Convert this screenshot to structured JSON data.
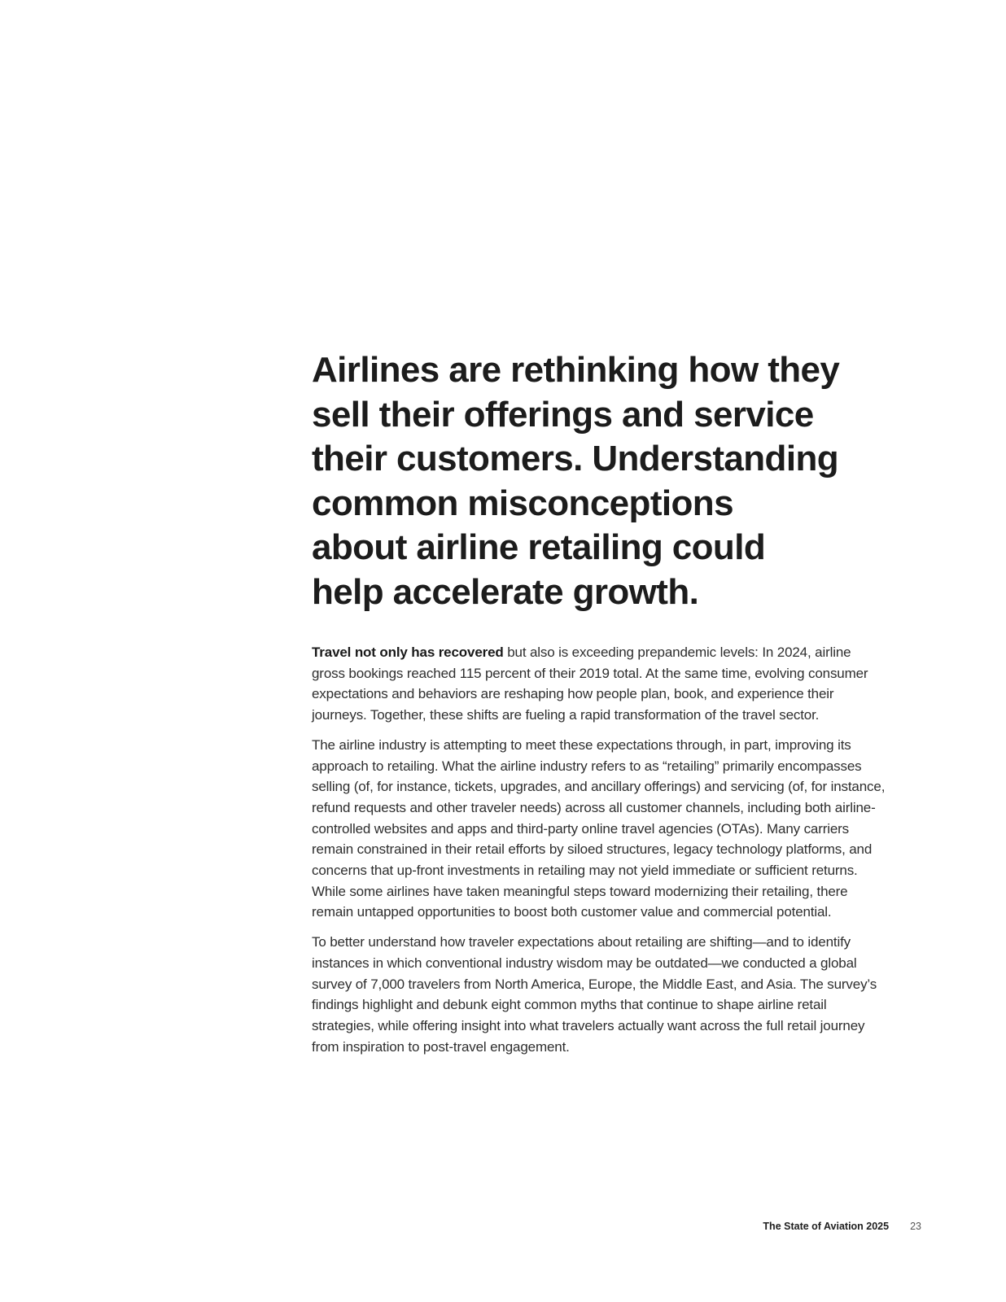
{
  "headline": "Airlines are rethinking how they\nsell their offerings and service\ntheir customers. Understanding\ncommon misconceptions\nabout airline retailing could\nhelp accelerate growth.",
  "paragraphs": {
    "p1": {
      "lead": "Travel not only has recovered",
      "text": " but also is exceeding prepandemic levels: In 2024, airline\ngross bookings reached 115 percent of their 2019 total. At the same time, evolving consumer\nexpectations and behaviors are reshaping how people plan, book, and experience their\njourneys. Together, these shifts are fueling a rapid transformation of the travel sector."
    },
    "p2": "The airline industry is attempting to meet these expectations through, in part, improving its\napproach to retailing.  What the airline industry refers to as “retailing” primarily encompasses\nselling (of, for instance, tickets, upgrades, and ancillary offerings) and servicing (of, for instance,\nrefund requests and other traveler needs) across all customer channels, including both airline-\ncontrolled websites and apps and third-party online travel agencies (OTAs). Many carriers\nremain constrained in their retail efforts by siloed structures, legacy technology platforms, and\nconcerns that up-front investments in retailing may not yield immediate or sufficient returns.\nWhile some airlines have taken meaningful steps toward modernizing their retailing, there\nremain untapped opportunities to boost both customer value and commercial potential.",
    "p3": "To better understand how traveler expectations about retailing are shifting—and to identify\ninstances in which conventional industry wisdom may be outdated—we conducted a global\nsurvey of 7,000 travelers from North America, Europe, the Middle East, and Asia. The survey’s\nfindings highlight and debunk eight common myths that continue to shape airline retail\nstrategies, while offering insight into what travelers actually want across the full retail journey\nfrom inspiration to post-travel engagement."
  },
  "footer": {
    "publication": "The State of Aviation 2025",
    "page_number": "23"
  }
}
